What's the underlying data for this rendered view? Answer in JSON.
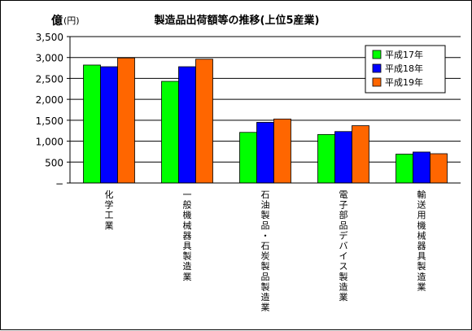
{
  "chart_data": {
    "type": "bar",
    "title": "製造品出荷額等の推移(上位5産業)",
    "unit_main": "億",
    "unit_sub": "(円)",
    "ylim": [
      0,
      3500
    ],
    "yticks": [
      "−",
      "500",
      "1,000",
      "1,500",
      "2,000",
      "2,500",
      "3,000",
      "3,500"
    ],
    "grid": true,
    "legend_position": "top-right",
    "categories": [
      "化学工業",
      "一般機械器具製造業",
      "石油製品・石炭製品製造業",
      "電子部品デバイス製造業",
      "輸送用機械器具製造業"
    ],
    "series": [
      {
        "name": "平成17年",
        "color": "#00ff00",
        "values": [
          2820,
          2430,
          1210,
          1160,
          690
        ]
      },
      {
        "name": "平成18年",
        "color": "#0000ff",
        "values": [
          2780,
          2780,
          1450,
          1230,
          740
        ]
      },
      {
        "name": "平成19年",
        "color": "#ff6600",
        "values": [
          2990,
          2960,
          1530,
          1370,
          700
        ]
      }
    ]
  }
}
